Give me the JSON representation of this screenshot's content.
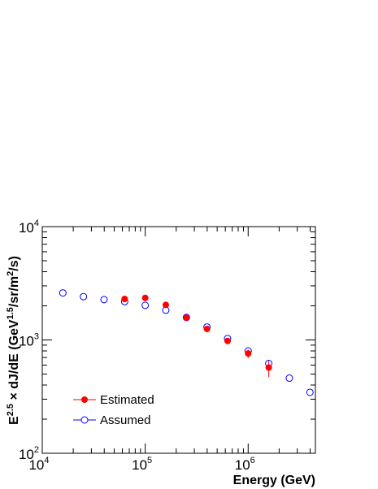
{
  "chart_data": {
    "type": "scatter",
    "title": "",
    "xlabel": "Energy (GeV)",
    "ylabel_parts": {
      "base": "E",
      "base_exp": "2.5",
      "middle": " × dJ/dE (GeV",
      "unit_exp": "1.5",
      "after_unit": "/sr/m",
      "sq": "2",
      "tail": "/s)"
    },
    "x_scale": "log",
    "y_scale": "log",
    "xlim": [
      10000,
      4500000
    ],
    "ylim": [
      100,
      10000
    ],
    "x_tick_labels": [
      {
        "value": 10000,
        "base": "10",
        "exp": "4"
      },
      {
        "value": 100000,
        "base": "10",
        "exp": "5"
      },
      {
        "value": 1000000,
        "base": "10",
        "exp": "6"
      }
    ],
    "y_tick_labels": [
      {
        "value": 100,
        "base": "10",
        "exp": "2"
      },
      {
        "value": 1000,
        "base": "10",
        "exp": "3"
      },
      {
        "value": 10000,
        "base": "10",
        "exp": "4"
      }
    ],
    "grid": false,
    "legend_position": "bottom-left",
    "series": [
      {
        "name": "Estimated",
        "color": "#ff0000",
        "marker": "filled-circle",
        "points": [
          {
            "x": 63100,
            "y": 2300,
            "err_low": 0,
            "err_high": 0
          },
          {
            "x": 100000,
            "y": 2350,
            "err_low": 0,
            "err_high": 0
          },
          {
            "x": 158500,
            "y": 2040,
            "err_low": 0,
            "err_high": 0
          },
          {
            "x": 251200,
            "y": 1570,
            "err_low": 0,
            "err_high": 0
          },
          {
            "x": 398100,
            "y": 1250,
            "err_low": 0,
            "err_high": 0
          },
          {
            "x": 631000,
            "y": 980,
            "err_low": 0,
            "err_high": 0
          },
          {
            "x": 1000000,
            "y": 760,
            "err_low": 690,
            "err_high": 820
          },
          {
            "x": 1585000,
            "y": 570,
            "err_low": 470,
            "err_high": 660
          }
        ]
      },
      {
        "name": "Assumed",
        "color": "#0000ff",
        "marker": "open-circle",
        "points": [
          {
            "x": 15850,
            "y": 2600
          },
          {
            "x": 25120,
            "y": 2410
          },
          {
            "x": 39810,
            "y": 2270
          },
          {
            "x": 63100,
            "y": 2180
          },
          {
            "x": 100000,
            "y": 2020
          },
          {
            "x": 158500,
            "y": 1830
          },
          {
            "x": 251200,
            "y": 1580
          },
          {
            "x": 398100,
            "y": 1300
          },
          {
            "x": 631000,
            "y": 1030
          },
          {
            "x": 1000000,
            "y": 800
          },
          {
            "x": 1585000,
            "y": 620
          },
          {
            "x": 2512000,
            "y": 460
          },
          {
            "x": 3981000,
            "y": 345
          }
        ]
      }
    ]
  }
}
